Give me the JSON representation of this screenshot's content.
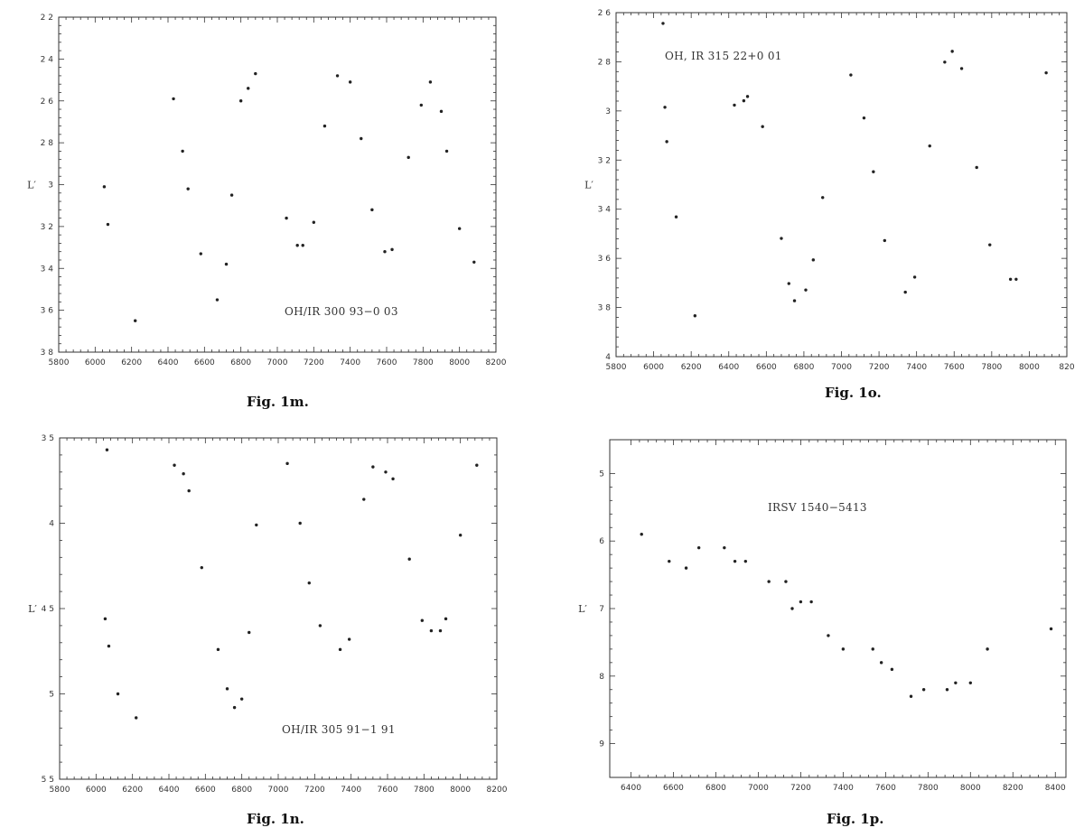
{
  "chart_data": [
    {
      "type": "scatter",
      "caption": "Fig. 1m.",
      "annotation": "OH/IR 300 93−0 03",
      "ylabel": "L′",
      "xlabel": "",
      "xlim": [
        5800,
        8200
      ],
      "ylim": [
        2.2,
        3.8
      ],
      "y_inverted": true,
      "xticks": [
        "5800",
        "6000",
        "6200",
        "6400",
        "6600",
        "6800",
        "7000",
        "7200",
        "7400",
        "7600",
        "7800",
        "8000",
        "8200"
      ],
      "yticks": [
        "2 2",
        "2 4",
        "2 6",
        "2 8",
        "3",
        "3 2",
        "3 4",
        "3 6",
        "3 8"
      ],
      "x": [
        6050,
        6070,
        6220,
        6430,
        6480,
        6510,
        6580,
        6670,
        6720,
        6750,
        6800,
        6840,
        6880,
        7050,
        7110,
        7140,
        7200,
        7260,
        7330,
        7400,
        7460,
        7520,
        7590,
        7630,
        7720,
        7790,
        7840,
        7900,
        7930,
        8000,
        8080
      ],
      "y": [
        3.01,
        3.19,
        3.65,
        2.59,
        2.84,
        3.02,
        3.33,
        3.55,
        3.38,
        3.05,
        2.6,
        2.54,
        2.47,
        3.16,
        3.29,
        3.29,
        3.18,
        2.72,
        2.48,
        2.51,
        2.78,
        3.12,
        3.32,
        3.31,
        2.87,
        2.62,
        2.51,
        2.65,
        2.84,
        3.21,
        3.37
      ]
    },
    {
      "type": "scatter",
      "caption": "Fig. 1o.",
      "annotation": "OH, IR 315 22+0 01",
      "ylabel": "L′",
      "xlabel": "",
      "xlim": [
        5800,
        8200
      ],
      "ylim": [
        2.5,
        4.1
      ],
      "y_inverted": true,
      "xticks": [
        "5800",
        "6000",
        "6200",
        "6400",
        "6600",
        "6800",
        "7000",
        "7200",
        "7400",
        "7600",
        "7800",
        "8000",
        "820"
      ],
      "yticks": [
        "2 6",
        "2 8",
        "3",
        "3 2",
        "3 4",
        "3 6",
        "3 8",
        "4"
      ],
      "x": [
        6050,
        6060,
        6070,
        6120,
        6220,
        6430,
        6480,
        6500,
        6580,
        6680,
        6720,
        6750,
        6810,
        6850,
        6900,
        7050,
        7120,
        7170,
        7230,
        7340,
        7390,
        7470,
        7550,
        7590,
        7640,
        7720,
        7790,
        7900,
        7930,
        8090
      ],
      "y": [
        2.55,
        2.94,
        3.1,
        3.45,
        3.91,
        2.93,
        2.91,
        2.89,
        3.03,
        3.55,
        3.76,
        3.84,
        3.79,
        3.65,
        3.36,
        2.79,
        2.99,
        3.24,
        3.56,
        3.8,
        3.73,
        3.12,
        2.73,
        2.68,
        2.76,
        3.22,
        3.58,
        3.74,
        3.74,
        2.78
      ]
    },
    {
      "type": "scatter",
      "caption": "Fig. 1n.",
      "annotation": "OH/IR 305 91−1 91",
      "ylabel": "L′",
      "xlabel": "",
      "xlim": [
        5800,
        8200
      ],
      "ylim": [
        3.5,
        5.5
      ],
      "y_inverted": true,
      "xticks": [
        "5800",
        "6000",
        "6200",
        "6400",
        "6600",
        "6800",
        "7000",
        "7200",
        "7400",
        "7600",
        "7800",
        "8000",
        "8200"
      ],
      "yticks": [
        "3 5",
        "4",
        "4 5",
        "5",
        "5 5"
      ],
      "x": [
        6050,
        6060,
        6070,
        6120,
        6220,
        6430,
        6480,
        6510,
        6580,
        6670,
        6720,
        6760,
        6800,
        6840,
        6880,
        7050,
        7120,
        7170,
        7230,
        7340,
        7390,
        7470,
        7520,
        7590,
        7630,
        7720,
        7790,
        7840,
        7890,
        7920,
        8000,
        8090
      ],
      "y": [
        4.56,
        3.57,
        4.72,
        5.0,
        5.14,
        3.66,
        3.71,
        3.81,
        4.26,
        4.74,
        4.97,
        5.08,
        5.03,
        4.64,
        4.01,
        3.65,
        4.0,
        4.35,
        4.6,
        4.74,
        4.68,
        3.86,
        3.67,
        3.7,
        3.74,
        4.21,
        4.57,
        4.63,
        4.63,
        4.56,
        4.07,
        3.66
      ]
    },
    {
      "type": "scatter",
      "caption": "Fig. 1p.",
      "annotation": "IRSV 1540−5413",
      "ylabel": "L′",
      "xlabel": "",
      "xlim": [
        6300,
        8450
      ],
      "ylim": [
        4.5,
        9.5
      ],
      "y_inverted": true,
      "xticks": [
        "6400",
        "6600",
        "6800",
        "7000",
        "7200",
        "7400",
        "7600",
        "7800",
        "8000",
        "8200",
        "8400"
      ],
      "xtick_values": [
        6400,
        6600,
        6800,
        7000,
        7200,
        7400,
        7600,
        7800,
        8000,
        8200,
        8400
      ],
      "yticks": [
        "5",
        "6",
        "7",
        "8",
        "9"
      ],
      "ytick_values": [
        5,
        6,
        7,
        8,
        9
      ],
      "x": [
        6450,
        6580,
        6660,
        6720,
        6840,
        6890,
        6940,
        7050,
        7130,
        7160,
        7200,
        7250,
        7330,
        7400,
        7540,
        7580,
        7630,
        7720,
        7780,
        7890,
        7930,
        8000,
        8080,
        8380
      ],
      "y": [
        5.9,
        6.3,
        6.4,
        6.1,
        6.1,
        6.3,
        6.3,
        6.6,
        6.6,
        7.0,
        6.9,
        6.9,
        7.4,
        7.6,
        7.6,
        7.8,
        7.9,
        8.3,
        8.2,
        8.2,
        8.1,
        8.1,
        7.6,
        7.3
      ]
    }
  ]
}
